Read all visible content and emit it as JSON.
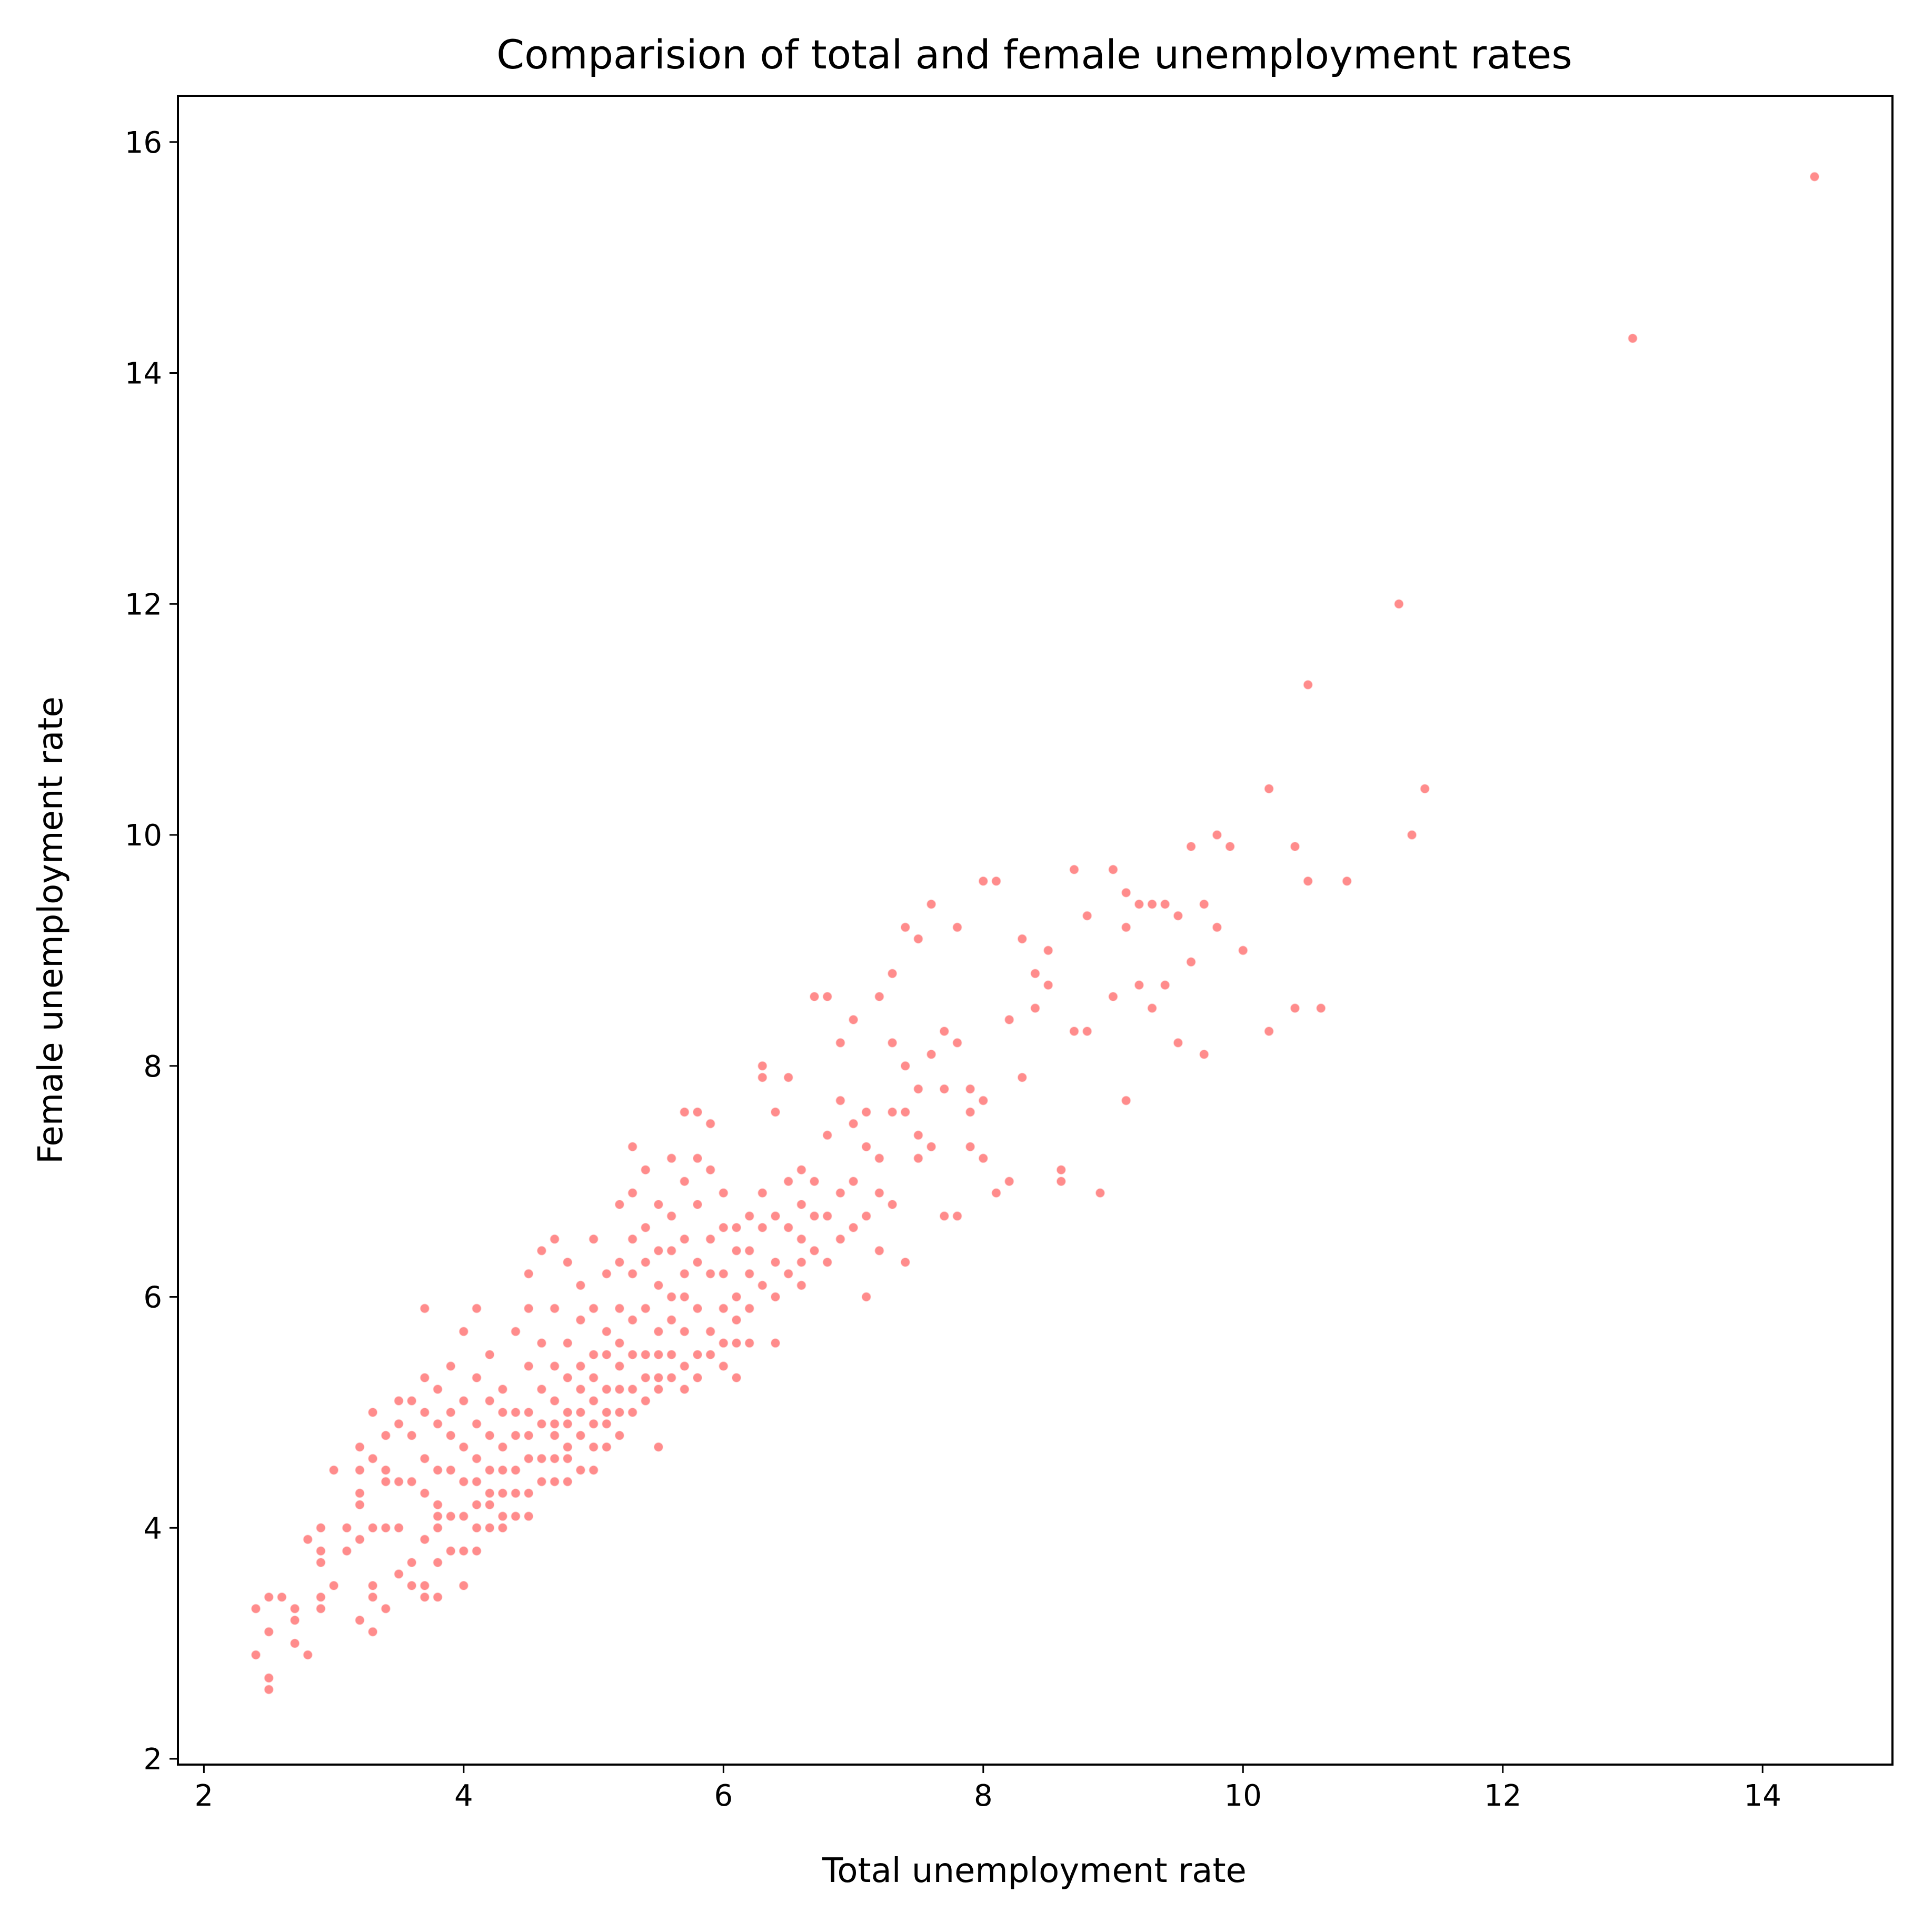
{
  "chart_data": {
    "type": "scatter",
    "title": "Comparision of total and female unemployment rates",
    "xlabel": "Total unemployment rate",
    "ylabel": "Female unemployment rate",
    "xlim": [
      1.8,
      15.0
    ],
    "ylim": [
      1.95,
      16.4
    ],
    "xticks": [
      2,
      4,
      6,
      8,
      10,
      12,
      14
    ],
    "yticks": [
      2,
      4,
      6,
      8,
      10,
      12,
      14,
      16
    ],
    "grid": false,
    "legend": "none",
    "marker_color": "#ff0000",
    "marker_edge_color": "#ffffff",
    "marker_alpha": 0.45,
    "series": [
      {
        "x": [
          2.4,
          2.4,
          2.5,
          2.5,
          2.5,
          2.5,
          2.6,
          2.7,
          2.7,
          2.7,
          2.8,
          2.8,
          2.9,
          2.9,
          2.9,
          2.9,
          2.9,
          3.0,
          3.0,
          3.1,
          3.1,
          3.2,
          3.2,
          3.2,
          3.2,
          3.2,
          3.2,
          3.3,
          3.3,
          3.3,
          3.3,
          3.3,
          3.3,
          3.4,
          3.4,
          3.4,
          3.4,
          3.4,
          3.5,
          3.5,
          3.5,
          3.5,
          3.5,
          3.6,
          3.6,
          3.6,
          3.6,
          3.6,
          3.7,
          3.7,
          3.7,
          3.7,
          3.7,
          3.7,
          3.7,
          3.7,
          3.8,
          3.8,
          3.8,
          3.8,
          3.8,
          3.8,
          3.8,
          3.8,
          3.9,
          3.9,
          3.9,
          3.9,
          3.9,
          3.9,
          4.0,
          4.0,
          4.0,
          4.0,
          4.0,
          4.0,
          4.0,
          4.1,
          4.1,
          4.1,
          4.1,
          4.1,
          4.1,
          4.1,
          4.1,
          4.2,
          4.2,
          4.2,
          4.2,
          4.2,
          4.2,
          4.2,
          4.3,
          4.3,
          4.3,
          4.3,
          4.3,
          4.3,
          4.3,
          4.4,
          4.4,
          4.4,
          4.4,
          4.4,
          4.4,
          4.5,
          4.5,
          4.5,
          4.5,
          4.5,
          4.5,
          4.5,
          4.5,
          4.6,
          4.6,
          4.6,
          4.6,
          4.6,
          4.6,
          4.7,
          4.7,
          4.7,
          4.7,
          4.7,
          4.7,
          4.7,
          4.7,
          4.8,
          4.8,
          4.8,
          4.8,
          4.8,
          4.8,
          4.8,
          4.8,
          4.9,
          4.9,
          4.9,
          4.9,
          4.9,
          4.9,
          4.9,
          5.0,
          5.0,
          5.0,
          5.0,
          5.0,
          5.0,
          5.0,
          5.0,
          5.1,
          5.1,
          5.1,
          5.1,
          5.1,
          5.1,
          5.1,
          5.2,
          5.2,
          5.2,
          5.2,
          5.2,
          5.2,
          5.2,
          5.2,
          5.3,
          5.3,
          5.3,
          5.3,
          5.3,
          5.3,
          5.3,
          5.3,
          5.4,
          5.4,
          5.4,
          5.4,
          5.4,
          5.4,
          5.4,
          5.5,
          5.5,
          5.5,
          5.5,
          5.5,
          5.5,
          5.5,
          5.5,
          5.6,
          5.6,
          5.6,
          5.6,
          5.6,
          5.6,
          5.6,
          5.7,
          5.7,
          5.7,
          5.7,
          5.7,
          5.7,
          5.7,
          5.7,
          5.8,
          5.8,
          5.8,
          5.8,
          5.8,
          5.8,
          5.8,
          5.9,
          5.9,
          5.9,
          5.9,
          5.9,
          5.9,
          6.0,
          6.0,
          6.0,
          6.0,
          6.0,
          6.0,
          6.1,
          6.1,
          6.1,
          6.1,
          6.1,
          6.1,
          6.2,
          6.2,
          6.2,
          6.2,
          6.2,
          6.3,
          6.3,
          6.3,
          6.3,
          6.3,
          6.4,
          6.4,
          6.4,
          6.4,
          6.4,
          6.5,
          6.5,
          6.5,
          6.5,
          6.6,
          6.6,
          6.6,
          6.6,
          6.6,
          6.7,
          6.7,
          6.7,
          6.7,
          6.8,
          6.8,
          6.8,
          6.8,
          6.9,
          6.9,
          6.9,
          6.9,
          7.0,
          7.0,
          7.0,
          7.0,
          7.1,
          7.1,
          7.1,
          7.1,
          7.2,
          7.2,
          7.2,
          7.2,
          7.3,
          7.3,
          7.3,
          7.3,
          7.4,
          7.4,
          7.4,
          7.4,
          7.5,
          7.5,
          7.5,
          7.5,
          7.6,
          7.6,
          7.6,
          7.7,
          7.7,
          7.7,
          7.8,
          7.8,
          7.8,
          7.9,
          7.9,
          7.9,
          8.0,
          8.0,
          8.0,
          8.1,
          8.1,
          8.2,
          8.2,
          8.3,
          8.3,
          8.4,
          8.4,
          8.5,
          8.5,
          8.6,
          8.6,
          8.7,
          8.7,
          8.8,
          8.8,
          8.9,
          9.0,
          9.0,
          9.1,
          9.1,
          9.1,
          9.2,
          9.2,
          9.3,
          9.3,
          9.4,
          9.4,
          9.5,
          9.5,
          9.6,
          9.6,
          9.7,
          9.7,
          9.8,
          9.8,
          9.9,
          10.0,
          10.2,
          10.2,
          10.4,
          10.4,
          10.5,
          10.5,
          10.6,
          10.8,
          11.2,
          11.3,
          11.4,
          13.0,
          14.4
        ],
        "y": [
          3.3,
          2.9,
          3.4,
          3.1,
          2.7,
          2.6,
          3.4,
          3.3,
          3.2,
          3.0,
          3.9,
          2.9,
          4.0,
          3.8,
          3.7,
          3.4,
          3.3,
          4.5,
          3.5,
          4.0,
          3.8,
          4.7,
          4.5,
          4.3,
          4.2,
          3.9,
          3.2,
          5.0,
          4.6,
          4.0,
          3.5,
          3.4,
          3.1,
          4.8,
          4.5,
          4.4,
          4.0,
          3.3,
          5.1,
          4.9,
          4.4,
          4.0,
          3.6,
          5.1,
          4.8,
          4.4,
          3.7,
          3.5,
          5.9,
          5.3,
          5.0,
          4.6,
          4.3,
          3.9,
          3.5,
          3.4,
          5.2,
          4.9,
          4.5,
          4.2,
          4.1,
          4.0,
          3.7,
          3.4,
          5.4,
          5.0,
          4.8,
          4.5,
          4.1,
          3.8,
          5.7,
          5.1,
          4.7,
          4.4,
          4.1,
          3.8,
          3.5,
          5.9,
          5.3,
          4.9,
          4.6,
          4.4,
          4.2,
          4.0,
          3.8,
          5.5,
          5.1,
          4.8,
          4.5,
          4.3,
          4.2,
          4.0,
          5.2,
          5.0,
          4.7,
          4.5,
          4.3,
          4.1,
          4.0,
          5.7,
          5.0,
          4.8,
          4.5,
          4.3,
          4.1,
          6.2,
          5.9,
          5.4,
          5.0,
          4.8,
          4.6,
          4.3,
          4.1,
          6.4,
          5.6,
          5.2,
          4.9,
          4.6,
          4.4,
          6.5,
          5.9,
          5.4,
          5.1,
          4.9,
          4.8,
          4.6,
          4.4,
          6.3,
          5.6,
          5.3,
          5.0,
          4.9,
          4.7,
          4.6,
          4.4,
          6.1,
          5.8,
          5.4,
          5.2,
          5.0,
          4.8,
          4.5,
          6.5,
          5.9,
          5.5,
          5.3,
          5.1,
          4.9,
          4.7,
          4.5,
          6.2,
          5.7,
          5.5,
          5.2,
          5.0,
          4.9,
          4.7,
          6.8,
          6.3,
          5.9,
          5.6,
          5.4,
          5.2,
          5.0,
          4.8,
          7.3,
          6.9,
          6.5,
          6.2,
          5.8,
          5.5,
          5.2,
          5.0,
          7.1,
          6.6,
          6.3,
          5.9,
          5.5,
          5.3,
          5.1,
          6.8,
          6.4,
          6.1,
          5.7,
          5.5,
          5.3,
          5.2,
          4.7,
          7.2,
          6.7,
          6.4,
          6.0,
          5.8,
          5.5,
          5.3,
          7.6,
          7.0,
          6.5,
          6.2,
          6.0,
          5.7,
          5.4,
          5.2,
          7.6,
          7.2,
          6.8,
          6.3,
          5.9,
          5.5,
          5.3,
          7.5,
          7.1,
          6.5,
          6.2,
          5.7,
          5.5,
          6.9,
          6.6,
          6.2,
          5.9,
          5.6,
          5.4,
          6.6,
          6.4,
          6.0,
          5.8,
          5.6,
          5.3,
          6.7,
          6.4,
          6.2,
          5.9,
          5.6,
          8.0,
          7.9,
          6.9,
          6.6,
          6.1,
          7.6,
          6.7,
          6.3,
          6.0,
          5.6,
          7.9,
          7.0,
          6.6,
          6.2,
          7.1,
          6.8,
          6.5,
          6.3,
          6.1,
          8.6,
          7.0,
          6.7,
          6.4,
          8.6,
          7.4,
          6.7,
          6.3,
          8.2,
          7.7,
          6.9,
          6.5,
          8.4,
          7.5,
          7.0,
          6.6,
          7.6,
          7.3,
          6.7,
          6.0,
          8.6,
          7.2,
          6.9,
          6.4,
          8.8,
          8.2,
          7.6,
          6.8,
          9.2,
          8.0,
          7.6,
          6.3,
          9.1,
          7.8,
          7.4,
          7.2,
          9.4,
          8.1,
          7.3,
          8.3,
          7.8,
          6.7,
          9.2,
          8.2,
          6.7,
          7.8,
          7.6,
          7.3,
          9.6,
          7.7,
          7.2,
          9.6,
          6.9,
          8.4,
          7.0,
          9.1,
          7.9,
          8.8,
          8.5,
          9.0,
          8.7,
          7.1,
          7.0,
          9.7,
          8.3,
          9.3,
          8.3,
          6.9,
          9.7,
          8.6,
          9.5,
          9.2,
          7.7,
          9.4,
          8.7,
          9.4,
          8.5,
          9.4,
          8.7,
          9.3,
          8.2,
          9.9,
          8.9,
          9.4,
          8.1,
          10.0,
          9.2,
          9.9,
          9.0,
          10.4,
          8.3,
          9.9,
          8.5,
          11.3,
          9.6,
          8.5,
          9.6,
          12.0,
          10.0,
          10.4,
          14.3,
          15.7
        ]
      }
    ]
  }
}
